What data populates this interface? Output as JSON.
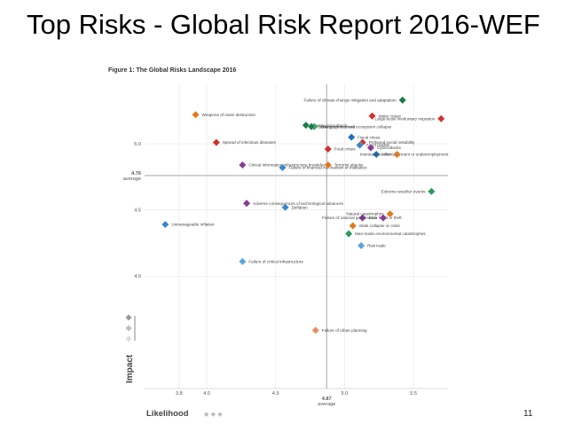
{
  "slide": {
    "title": "Top Risks - Global Risk Report 2016-WEF",
    "page_number": "11"
  },
  "chart_data": {
    "type": "scatter",
    "title": "Figure 1: The Global Risks Landscape 2016",
    "xlabel": "Likelihood",
    "ylabel": "Impact",
    "xlim": [
      3.55,
      5.75
    ],
    "ylim": [
      3.15,
      5.45
    ],
    "x_ticks": [
      "3.8",
      "4.0",
      "4.5",
      "5.0",
      "5.5"
    ],
    "x_tick_values": [
      3.8,
      4.0,
      4.5,
      5.0,
      5.5
    ],
    "y_ticks": [
      "4.0",
      "4.5",
      "5.0"
    ],
    "y_tick_values": [
      4.0,
      4.5,
      5.0
    ],
    "average_x": {
      "value": 4.87,
      "label": "4.87",
      "sublabel": "average"
    },
    "average_y": {
      "value": 4.76,
      "label": "4.76",
      "sublabel": "average"
    },
    "categories_colors": {
      "environmental": "#2e9a57",
      "economic": "#3a86c8",
      "geopolitical": "#e07a1f",
      "societal": "#d0312d",
      "technological": "#8a3a96"
    },
    "points": [
      {
        "label": "Failure of climate-change mitigation and adaptation",
        "x": 5.42,
        "y": 5.33,
        "color": "#1a7a4a"
      },
      {
        "label": "Large-scale involuntary migration",
        "x": 5.7,
        "y": 5.19,
        "color": "#d0312d"
      },
      {
        "label": "Water crises",
        "x": 5.2,
        "y": 5.21,
        "color": "#d0312d"
      },
      {
        "label": "Weapons of mass destruction",
        "x": 3.92,
        "y": 5.22,
        "color": "#e07a1f"
      },
      {
        "label": "Energy price shock",
        "x": 4.72,
        "y": 5.14,
        "color": "#1a7a4a"
      },
      {
        "label": "Energy price shock",
        "x": 4.78,
        "y": 5.13,
        "color": "#2e9a57"
      },
      {
        "label": "Biodiversity loss and ecosystem collapse",
        "x": 4.76,
        "y": 5.13,
        "color": "#1a7a4a"
      },
      {
        "label": "Fiscal crises",
        "x": 5.05,
        "y": 5.05,
        "color": "#1f6fb8"
      },
      {
        "label": "Profound social instability",
        "x": 5.13,
        "y": 5.01,
        "color": "#d0312d"
      },
      {
        "label": "Spread of infectious diseases",
        "x": 4.07,
        "y": 5.01,
        "color": "#d0312d"
      },
      {
        "label": "Asset bubble",
        "x": 5.11,
        "y": 4.99,
        "color": "#3a86c8"
      },
      {
        "label": "Cyberattacks",
        "x": 5.19,
        "y": 4.97,
        "color": "#8a3a96"
      },
      {
        "label": "Food crises",
        "x": 4.88,
        "y": 4.96,
        "color": "#d0312d"
      },
      {
        "label": "Unemployment or underemployment",
        "x": 5.23,
        "y": 4.92,
        "color": "#1f6fb8"
      },
      {
        "label": "Interstate conflict",
        "x": 5.38,
        "y": 4.92,
        "color": "#e07a1f"
      },
      {
        "label": "Critical information infrastructure breakdown",
        "x": 4.26,
        "y": 4.84,
        "color": "#8a3a96"
      },
      {
        "label": "Failure of financial mechanism or institution",
        "x": 4.55,
        "y": 4.82,
        "color": "#3a86c8"
      },
      {
        "label": "Terrorist attacks",
        "x": 4.88,
        "y": 4.84,
        "color": "#e07a1f"
      },
      {
        "label": "Extreme weather events",
        "x": 5.63,
        "y": 4.64,
        "color": "#2e9a57"
      },
      {
        "label": "Adverse consequences of technological advances",
        "x": 4.29,
        "y": 4.55,
        "color": "#8a3a96"
      },
      {
        "label": "Deflation",
        "x": 4.57,
        "y": 4.52,
        "color": "#3a86c8"
      },
      {
        "label": "Data fraud or theft",
        "x": 5.13,
        "y": 4.44,
        "color": "#8a3a96"
      },
      {
        "label": "Natural catastrophes",
        "x": 5.33,
        "y": 4.47,
        "color": "#e07a1f"
      },
      {
        "label": "Failure of national governance",
        "x": 5.28,
        "y": 4.44,
        "color": "#8a3a96"
      },
      {
        "label": "Unmanageable inflation",
        "x": 3.7,
        "y": 4.39,
        "color": "#3a86c8"
      },
      {
        "label": "State collapse or crisis",
        "x": 5.06,
        "y": 4.38,
        "color": "#e07a1f"
      },
      {
        "label": "Man-made environmental catastrophes",
        "x": 5.03,
        "y": 4.32,
        "color": "#2e9a57"
      },
      {
        "label": "Risk trade",
        "x": 5.12,
        "y": 4.23,
        "color": "#5ba4e0"
      },
      {
        "label": "Failure of critical infrastructure",
        "x": 4.26,
        "y": 4.11,
        "color": "#5ba4e0"
      },
      {
        "label": "Failure of urban planning",
        "x": 4.79,
        "y": 3.59,
        "color": "#f08a5d"
      }
    ],
    "axis_legend_glyph": "◆ ◆ ◆"
  }
}
